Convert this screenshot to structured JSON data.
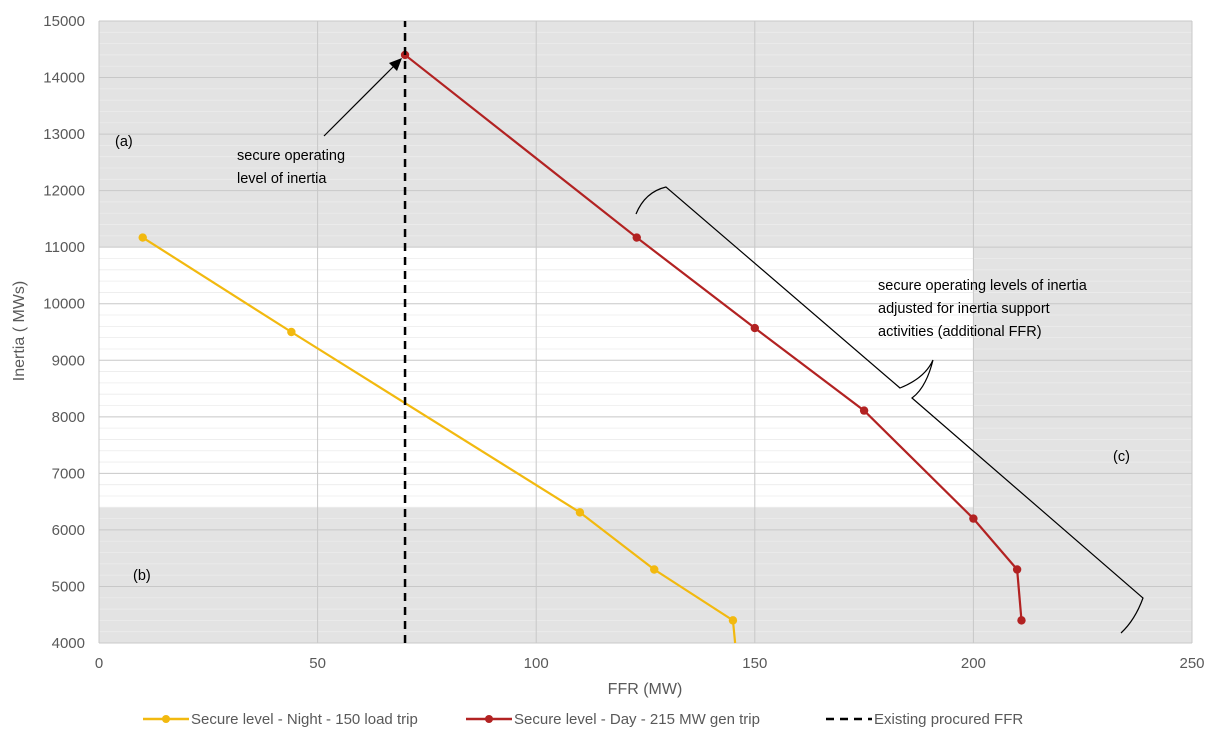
{
  "chart_data": {
    "type": "line",
    "xlabel": "FFR (MW)",
    "ylabel": "Inertia ( MWs)",
    "xlim": [
      0,
      250
    ],
    "ylim": [
      4000,
      15000
    ],
    "x_ticks": [
      0,
      50,
      100,
      150,
      200,
      250
    ],
    "y_ticks": [
      4000,
      5000,
      6000,
      7000,
      8000,
      9000,
      10000,
      11000,
      12000,
      13000,
      14000,
      15000
    ],
    "grid": true,
    "legend_position": "bottom",
    "shaded_regions": [
      {
        "label": "(a)",
        "x": [
          0,
          250
        ],
        "y": [
          11000,
          15000
        ],
        "color": "#e3e3e3"
      },
      {
        "label": "(b)",
        "x": [
          0,
          250
        ],
        "y": [
          4000,
          6400
        ],
        "color": "#e3e3e3"
      },
      {
        "label": "(c)",
        "x": [
          200,
          250
        ],
        "y": [
          4000,
          15000
        ],
        "color": "#e3e3e3"
      }
    ],
    "series": [
      {
        "name": "Secure level - Night - 150 load trip",
        "color": "#f2b90f",
        "points": [
          [
            10,
            11170
          ],
          [
            44,
            9500
          ],
          [
            110,
            6310
          ],
          [
            127,
            5300
          ],
          [
            145,
            4400
          ],
          [
            145.5,
            4000
          ]
        ],
        "markers": [
          true,
          true,
          true,
          true,
          true,
          false
        ]
      },
      {
        "name": "Secure level - Day - 215 MW gen trip",
        "color": "#b22222",
        "points": [
          [
            70,
            14400
          ],
          [
            123,
            11170
          ],
          [
            150,
            9570
          ],
          [
            175,
            8110
          ],
          [
            200,
            6200
          ],
          [
            210,
            5300
          ],
          [
            211,
            4400
          ]
        ],
        "markers": [
          true,
          true,
          true,
          true,
          true,
          true,
          true
        ]
      },
      {
        "name": "Existing procured FFR",
        "color": "#000000",
        "dashed": true,
        "points": [
          [
            70,
            4000
          ],
          [
            70,
            15000
          ]
        ],
        "markers": [
          false,
          false
        ]
      }
    ],
    "annotations": {
      "a": "(a)",
      "b": "(b)",
      "c": "(c)",
      "secure_level_line1": "secure operating",
      "secure_level_line2": "level of inertia",
      "adjusted_line1": "secure operating levels of inertia",
      "adjusted_line2": "adjusted for inertia support",
      "adjusted_line3": "activities (additional FFR)"
    }
  }
}
